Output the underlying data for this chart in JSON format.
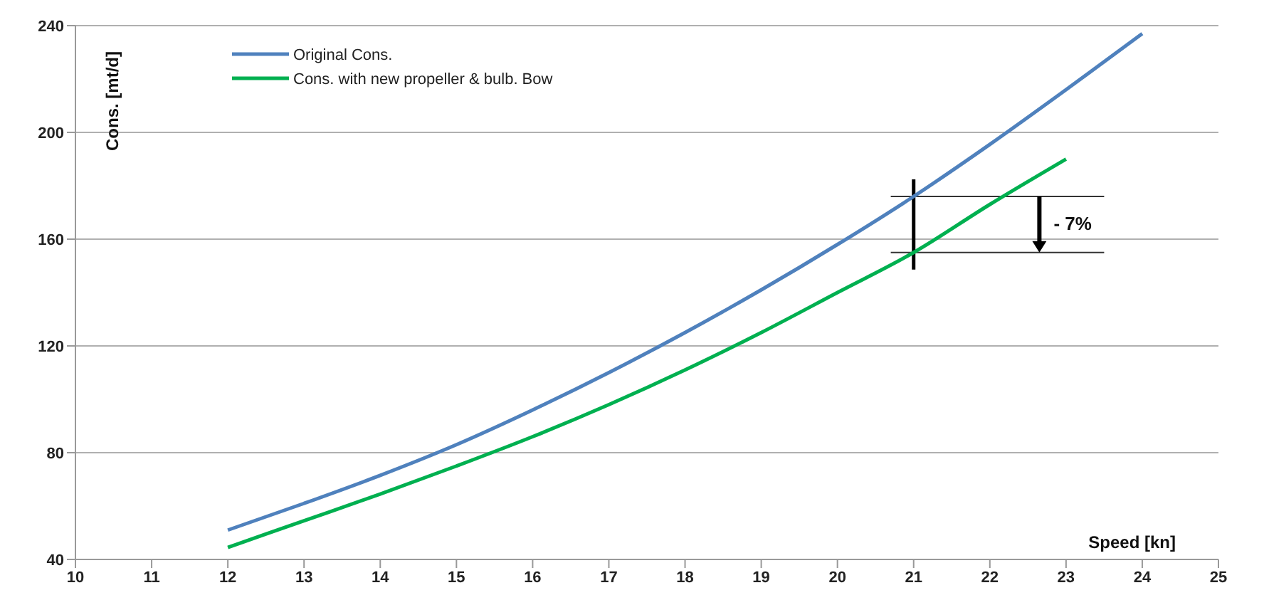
{
  "chart_data": {
    "type": "line",
    "xlabel": "Speed [kn]",
    "ylabel": "Cons. [mt/d]",
    "x": [
      12,
      13,
      14,
      15,
      16,
      17,
      18,
      19,
      20,
      21,
      22,
      23,
      24
    ],
    "series": [
      {
        "name": "Original Cons.",
        "color": "#4f81bd",
        "values": [
          51,
          61,
          71.5,
          83,
          96,
          110,
          125,
          141,
          158,
          176,
          195.5,
          216,
          237
        ]
      },
      {
        "name": "Cons. with new propeller & bulb. Bow",
        "color": "#00b050",
        "x": [
          12,
          13,
          14,
          15,
          16,
          17,
          18,
          19,
          20,
          21,
          22,
          23
        ],
        "values": [
          44.5,
          54.5,
          64.5,
          75,
          86,
          98,
          111,
          125,
          140,
          155,
          173,
          190
        ]
      }
    ],
    "xlim": [
      10,
      25
    ],
    "xticks": [
      10,
      11,
      12,
      13,
      14,
      15,
      16,
      17,
      18,
      19,
      20,
      21,
      22,
      23,
      24,
      25
    ],
    "ylim": [
      40,
      240
    ],
    "yticks": [
      40,
      80,
      120,
      160,
      200,
      240
    ],
    "grid": "y",
    "legend": "top left",
    "marker": "none",
    "line_style": "solid",
    "annotations": [
      "- 7%"
    ]
  }
}
